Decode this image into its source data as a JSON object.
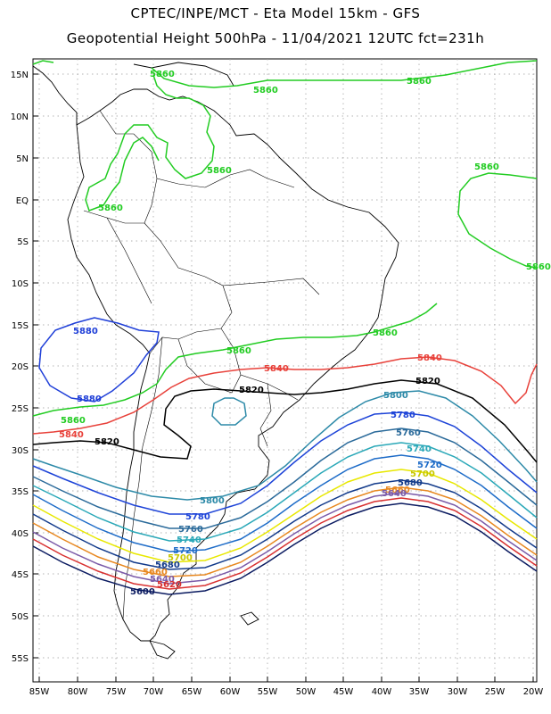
{
  "header": {
    "line1": "CPTEC/INPE/MCT -  Eta Model 15km - GFS",
    "line2": "Geopotential Height 500hPa - 11/04/2021 12UTC fct=231h"
  },
  "axes": {
    "lat_labels": [
      "15N",
      "10N",
      "5N",
      "EQ",
      "5S",
      "10S",
      "15S",
      "20S",
      "25S",
      "30S",
      "35S",
      "40S",
      "45S",
      "50S",
      "55S"
    ],
    "lon_labels": [
      "85W",
      "80W",
      "75W",
      "70W",
      "65W",
      "60W",
      "55W",
      "50W",
      "45W",
      "40W",
      "35W",
      "30W",
      "25W",
      "20W"
    ]
  },
  "contours": {
    "c5880": {
      "label": "5880",
      "color": "#1f3fd8"
    },
    "c5860": {
      "label": "5860",
      "color": "#22cc22"
    },
    "c5840": {
      "label": "5840",
      "color": "#e8413a"
    },
    "c5820": {
      "label": "5820",
      "color": "#000000"
    },
    "c5800": {
      "label": "5800",
      "color": "#2d8aa8"
    },
    "c5780": {
      "label": "5780",
      "color": "#1e44d8"
    },
    "c5760": {
      "label": "5760",
      "color": "#2a6a9a"
    },
    "c5740": {
      "label": "5740",
      "color": "#2aa8b8"
    },
    "c5720": {
      "label": "5720",
      "color": "#1e6cc8"
    },
    "c5700": {
      "label": "5700",
      "color": "#e8e800"
    },
    "c5680": {
      "label": "5680",
      "color": "#123a8a"
    },
    "c5660": {
      "label": "5660",
      "color": "#e88820"
    },
    "c5640": {
      "label": "5640",
      "color": "#7a5aa8"
    },
    "c5620": {
      "label": "5620",
      "color": "#d83030"
    },
    "c5600": {
      "label": "5600",
      "color": "#0a1a60"
    }
  }
}
